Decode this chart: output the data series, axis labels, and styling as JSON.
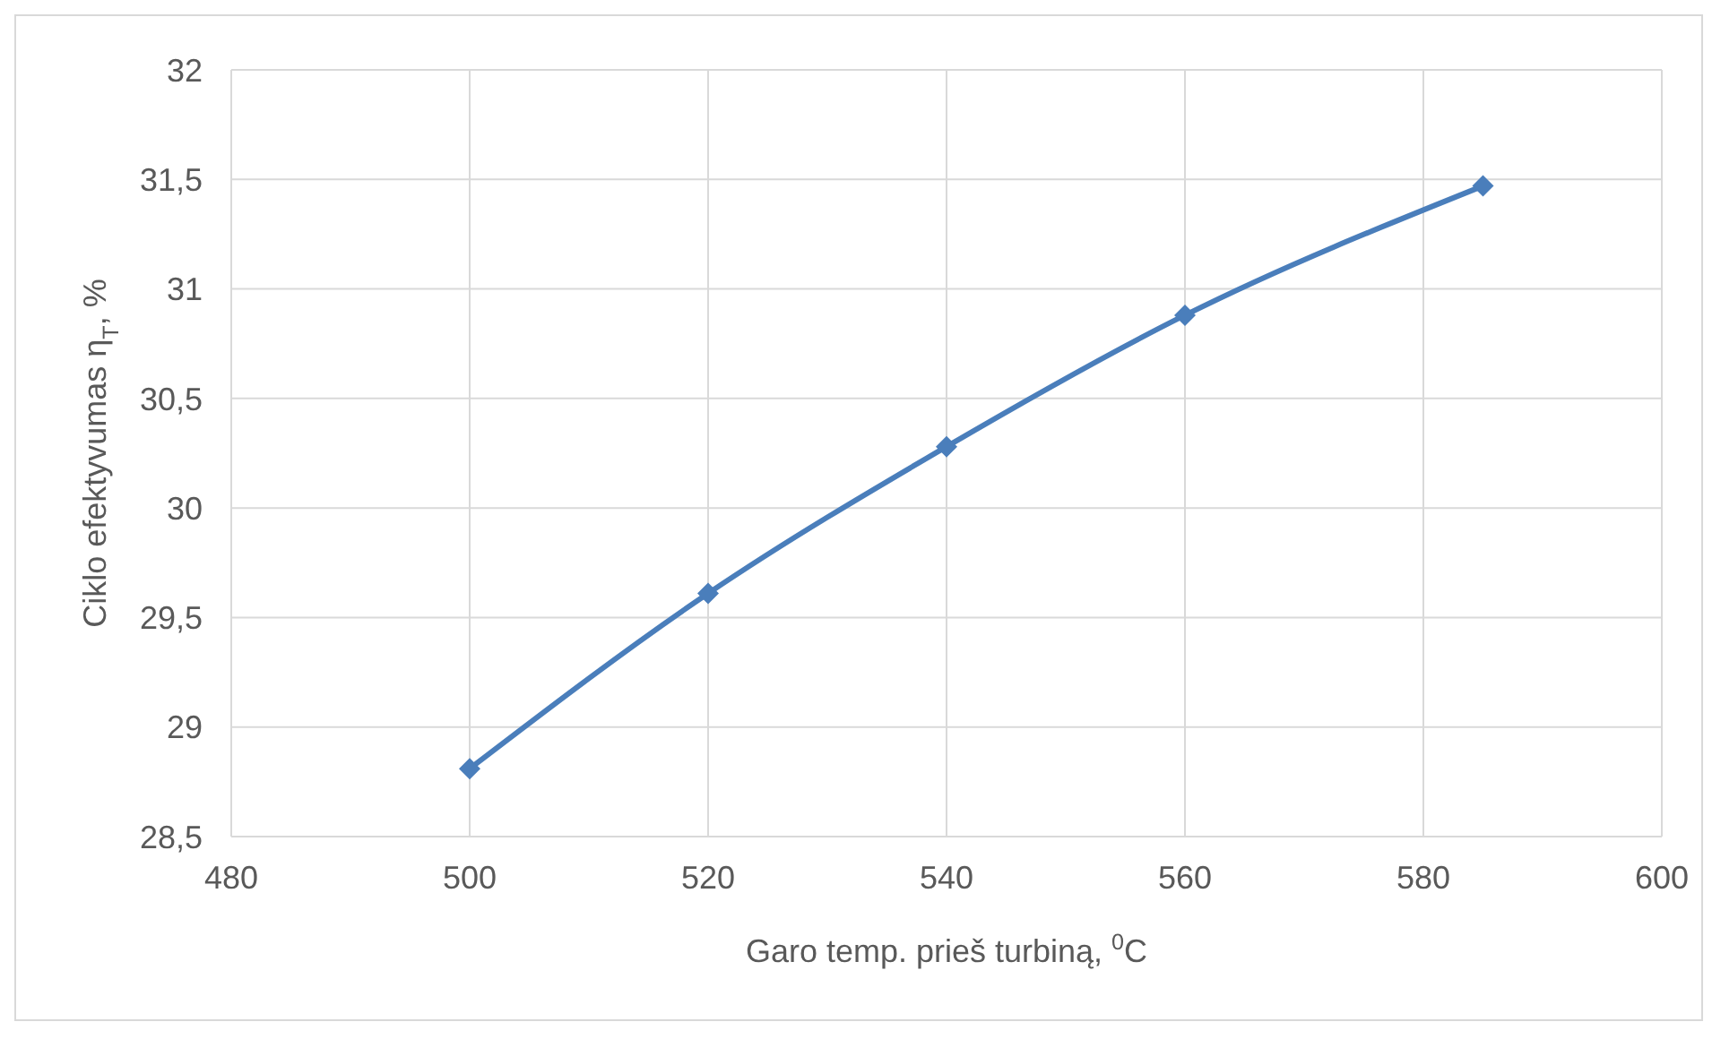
{
  "chart_data": {
    "type": "line",
    "xlabel": "Garo temp. prieš turbiną, $^{0}$C",
    "ylabel": "Ciklo efektyvumas η$_{T}$, %",
    "x": [
      500,
      520,
      540,
      560,
      585
    ],
    "series": [
      {
        "color": "#4a7ebb",
        "values": [
          28.81,
          29.61,
          30.28,
          30.88,
          31.47
        ]
      }
    ],
    "xlim": [
      480,
      600
    ],
    "xticks": [
      480,
      500,
      520,
      540,
      560,
      580,
      600
    ],
    "ylim": [
      28.5,
      32
    ],
    "yticks": [
      {
        "value": 28.5,
        "label": "28,5"
      },
      29,
      {
        "value": 29.5,
        "label": "29,5"
      },
      30,
      {
        "value": 30.5,
        "label": "30,5"
      },
      31,
      {
        "value": 31.5,
        "label": "31,5"
      },
      32
    ],
    "grid": true,
    "marker": "diamond",
    "line_style": "solid",
    "legend": false
  }
}
